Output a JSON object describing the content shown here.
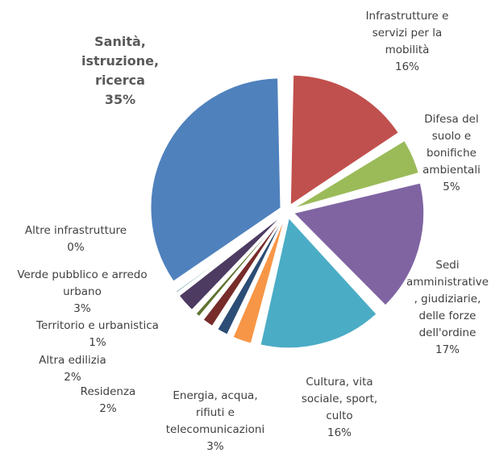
{
  "chart_data": {
    "type": "pie",
    "title": "",
    "legend": "none",
    "slices": [
      {
        "label": "Infrastrutture e servizi per la mobilità",
        "value": 16,
        "value_label": "16%",
        "color": "#C0504D"
      },
      {
        "label": "Difesa del suolo e bonifiche ambientali",
        "value": 5,
        "value_label": "5%",
        "color": "#9BBB59"
      },
      {
        "label": "Sedi amministrative, giudiziarie, delle forze dell'ordine",
        "value": 17,
        "value_label": "17%",
        "color": "#8064A2"
      },
      {
        "label": "Cultura, vita sociale, sport, culto",
        "value": 16,
        "value_label": "16%",
        "color": "#4BACC6"
      },
      {
        "label": "Energia, acqua, rifiuti e telecomunicazioni",
        "value": 3,
        "value_label": "3%",
        "color": "#F79646"
      },
      {
        "label": "Residenza",
        "value": 2,
        "value_label": "2%",
        "color": "#2C4D75"
      },
      {
        "label": "Altra edilizia",
        "value": 2,
        "value_label": "2%",
        "color": "#772C2A"
      },
      {
        "label": "Territorio e urbanistica",
        "value": 1,
        "value_label": "1%",
        "color": "#5F7530"
      },
      {
        "label": "Verde pubblico e arredo urbano",
        "value": 3,
        "value_label": "3%",
        "color": "#4D3B62"
      },
      {
        "label": "Altre infrastrutture",
        "value": 0.3,
        "value_label": "0%",
        "color": "#276A7C"
      },
      {
        "label": "Sanità, istruzione, ricerca",
        "value": 35,
        "value_label": "35%",
        "color": "#4F81BD"
      }
    ],
    "label_lines": {
      "mobility": [
        "Infrastrutture e",
        "servizi per la",
        "mobilità"
      ],
      "suolo": [
        "Difesa del",
        "suolo e",
        "bonifiche",
        "ambientali"
      ],
      "sedi": [
        "Sedi",
        "amministrative",
        ", giudiziarie,",
        "delle forze",
        "dell'ordine"
      ],
      "cultura": [
        "Cultura, vita",
        "sociale, sport,",
        "culto"
      ],
      "energia": [
        "Energia, acqua,",
        "rifiuti e",
        "telecomunicazioni"
      ],
      "residenza": [
        "Residenza"
      ],
      "altra_edilizia": [
        "Altra edilizia"
      ],
      "territorio": [
        "Territorio e urbanistica"
      ],
      "verde": [
        "Verde pubblico e arredo",
        "urbano"
      ],
      "altre_infra": [
        "Altre infrastrutture"
      ],
      "sanita": [
        "Sanità,",
        "istruzione,",
        "ricerca"
      ]
    }
  }
}
